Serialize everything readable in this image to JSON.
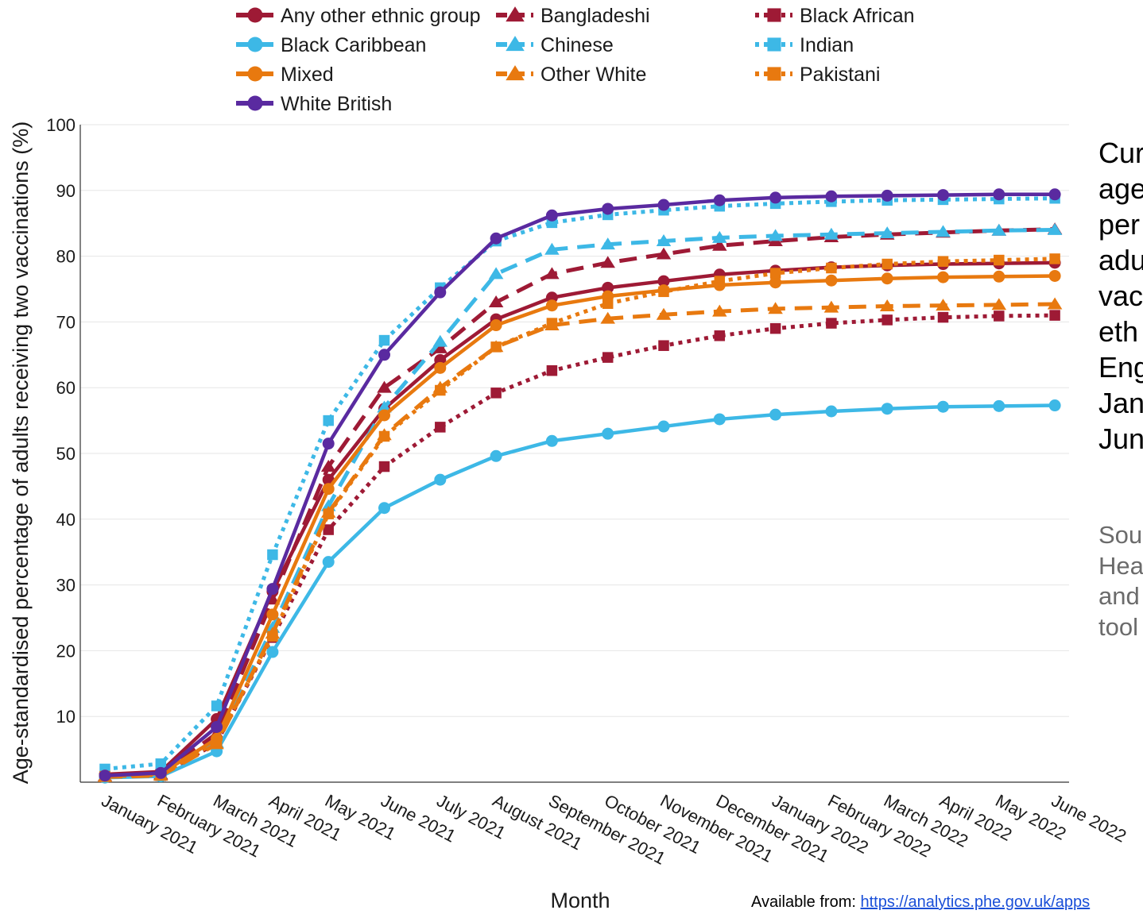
{
  "chart_data": {
    "type": "line",
    "title": "",
    "xlabel": "Month",
    "ylabel": "Age-standardised percentage of adults receiving two vaccinations (%)",
    "ylim": [
      0,
      100
    ],
    "yticks": [
      "10",
      "20",
      "30",
      "40",
      "50",
      "60",
      "70",
      "80",
      "90",
      "100"
    ],
    "grid": "horizontal",
    "legend": "top",
    "x": [
      "January 2021",
      "February 2021",
      "March 2021",
      "April 2021",
      "May 2021",
      "June 2021",
      "July 2021",
      "August 2021",
      "September 2021",
      "October 2021",
      "November 2021",
      "December 2021",
      "January 2022",
      "February 2022",
      "March 2022",
      "April 2022",
      "May 2022",
      "June 2022"
    ],
    "series": [
      {
        "name": "Any other ethnic group",
        "color": "#9e1a35",
        "dash": "solid",
        "marker": "circle",
        "values": [
          1.2,
          1.6,
          9.6,
          29.0,
          46.0,
          56.8,
          64.2,
          70.4,
          73.7,
          75.2,
          76.2,
          77.2,
          77.8,
          78.3,
          78.6,
          78.8,
          78.9,
          79.0
        ]
      },
      {
        "name": "Bangladeshi",
        "color": "#9e1a35",
        "dash": "dash",
        "marker": "triangle",
        "values": [
          0.9,
          1.2,
          7.4,
          27.8,
          48.0,
          60.0,
          66.0,
          73.0,
          77.3,
          79.0,
          80.3,
          81.6,
          82.3,
          82.9,
          83.3,
          83.6,
          83.9,
          84.1
        ]
      },
      {
        "name": "Black African",
        "color": "#9e1a35",
        "dash": "dot",
        "marker": "square",
        "values": [
          0.8,
          1.0,
          6.0,
          22.0,
          38.4,
          48.0,
          54.0,
          59.2,
          62.6,
          64.6,
          66.4,
          67.9,
          69.0,
          69.8,
          70.3,
          70.7,
          70.9,
          71.0
        ]
      },
      {
        "name": "Black Caribbean",
        "color": "#3db8e6",
        "dash": "solid",
        "marker": "circle",
        "values": [
          0.7,
          0.9,
          4.7,
          19.8,
          33.5,
          41.7,
          46.0,
          49.6,
          51.9,
          53.0,
          54.1,
          55.2,
          55.9,
          56.4,
          56.8,
          57.1,
          57.2,
          57.3
        ]
      },
      {
        "name": "Chinese",
        "color": "#3db8e6",
        "dash": "dash",
        "marker": "triangle",
        "values": [
          0.8,
          1.0,
          6.0,
          23.5,
          42.0,
          57.0,
          67.0,
          77.3,
          81.0,
          81.8,
          82.3,
          82.8,
          83.1,
          83.3,
          83.5,
          83.7,
          83.9,
          84.0
        ]
      },
      {
        "name": "Indian",
        "color": "#3db8e6",
        "dash": "dot",
        "marker": "square",
        "values": [
          2.0,
          2.8,
          11.6,
          34.6,
          55.0,
          67.2,
          75.2,
          82.3,
          85.1,
          86.3,
          87.0,
          87.6,
          88.0,
          88.3,
          88.5,
          88.6,
          88.7,
          88.8
        ]
      },
      {
        "name": "Mixed",
        "color": "#e8790f",
        "dash": "solid",
        "marker": "circle",
        "values": [
          1.0,
          1.3,
          6.6,
          25.5,
          44.6,
          55.8,
          63.0,
          69.5,
          72.5,
          73.9,
          74.8,
          75.6,
          76.0,
          76.3,
          76.6,
          76.8,
          76.9,
          77.0
        ]
      },
      {
        "name": "Other White",
        "color": "#e8790f",
        "dash": "dash",
        "marker": "triangle",
        "values": [
          0.8,
          1.0,
          5.8,
          22.6,
          41.0,
          52.8,
          60.0,
          66.2,
          69.5,
          70.5,
          71.1,
          71.6,
          72.0,
          72.2,
          72.4,
          72.5,
          72.6,
          72.7
        ]
      },
      {
        "name": "Pakistani",
        "color": "#e8790f",
        "dash": "dot",
        "marker": "square",
        "values": [
          0.9,
          1.1,
          6.2,
          22.2,
          40.8,
          52.6,
          59.6,
          66.2,
          69.8,
          72.8,
          74.6,
          76.2,
          77.4,
          78.2,
          78.8,
          79.2,
          79.4,
          79.6
        ]
      },
      {
        "name": "White British",
        "color": "#5a2aa0",
        "dash": "solid",
        "marker": "circle",
        "values": [
          1.0,
          1.4,
          8.4,
          29.4,
          51.5,
          65.0,
          74.5,
          82.7,
          86.2,
          87.2,
          87.8,
          88.5,
          88.9,
          89.1,
          89.2,
          89.3,
          89.4,
          89.4
        ]
      }
    ]
  },
  "side_title": "Cur\nage\nper\nadu\nvac\neth\nEng\nJan\nJun",
  "side_source": "Sou\nHea\nand\ntool",
  "footer": {
    "prefix": "Available from: ",
    "link_text": "https://analytics.phe.gov.uk/apps"
  }
}
